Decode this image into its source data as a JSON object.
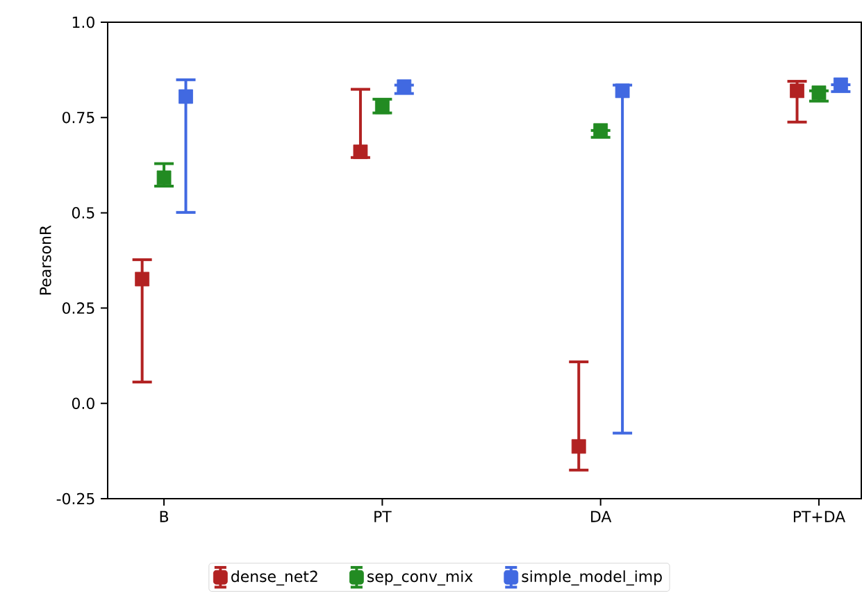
{
  "chart_data": {
    "type": "scatter",
    "categories": [
      "B",
      "PT",
      "DA",
      "PT+DA"
    ],
    "ylabel": "PearsonR",
    "ylim": [
      -0.25,
      1.0
    ],
    "yticks": [
      {
        "value": -0.25,
        "label": "-0.25"
      },
      {
        "value": 0.0,
        "label": "0.0"
      },
      {
        "value": 0.25,
        "label": "0.25"
      },
      {
        "value": 0.5,
        "label": "0.5"
      },
      {
        "value": 0.75,
        "label": "0.75"
      },
      {
        "value": 1.0,
        "label": "1.0"
      }
    ],
    "marker": "square",
    "legend": "bottom",
    "series": [
      {
        "name": "dense_net2",
        "color": "#b22222",
        "values": [
          0.326,
          0.66,
          -0.113,
          0.82
        ],
        "errors": [
          [
            0.056,
            0.377
          ],
          [
            0.645,
            0.824
          ],
          [
            -0.175,
            0.109
          ],
          [
            0.738,
            0.845
          ]
        ]
      },
      {
        "name": "sep_conv_mix",
        "color": "#228b22",
        "values": [
          0.592,
          0.778,
          0.716,
          0.815
        ],
        "errors": [
          [
            0.57,
            0.629
          ],
          [
            0.762,
            0.798
          ],
          [
            0.698,
            0.716
          ],
          [
            0.793,
            0.82
          ]
        ]
      },
      {
        "name": "simple_model_imp",
        "color": "#4169e1",
        "values": [
          0.805,
          0.831,
          0.82,
          0.836
        ],
        "errors": [
          [
            0.501,
            0.849
          ],
          [
            0.813,
            0.835
          ],
          [
            -0.078,
            0.835
          ],
          [
            0.818,
            0.836
          ]
        ]
      }
    ]
  }
}
